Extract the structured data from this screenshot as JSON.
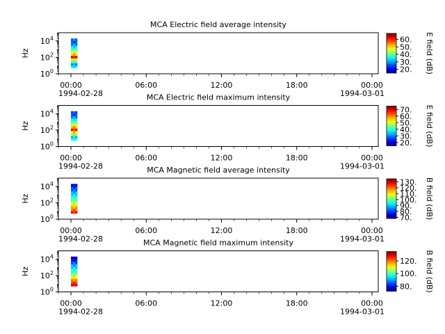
{
  "chart_data": [
    {
      "type": "heatmap",
      "title": "MCA  Electric field average intensity",
      "ylabel": "Hz",
      "colorbar_label": "E field (dB)",
      "colorbar_ticks": [
        "20.",
        "30.",
        "40.",
        "50.",
        "60."
      ],
      "colorbar_range": [
        15,
        68
      ],
      "x_ticks": [
        "00:00",
        "06:00",
        "12:00",
        "18:00",
        "00:00"
      ],
      "x_date_start": "1994-02-28",
      "x_date_end": "1994-03-01",
      "xlim": [
        "1994-02-27 23:00",
        "1994-03-01 00:30"
      ],
      "ylim": [
        1,
        100000
      ],
      "y_scale": "log",
      "y_ticks": [
        1,
        100,
        10000
      ],
      "data_time_range": [
        "1994-02-28 00:00",
        "1994-02-28 00:30"
      ],
      "data_freq_range": [
        5,
        20000
      ],
      "profile": [
        35,
        30,
        38,
        48,
        62,
        52,
        45,
        40,
        34,
        30,
        25,
        28
      ]
    },
    {
      "type": "heatmap",
      "title": "MCA  Electric field maximum intensity",
      "ylabel": "Hz",
      "colorbar_label": "E field (dB)",
      "colorbar_ticks": [
        "20.",
        "30.",
        "40.",
        "50.",
        "60.",
        "70."
      ],
      "colorbar_range": [
        15,
        75
      ],
      "x_ticks": [
        "00:00",
        "06:00",
        "12:00",
        "18:00",
        "00:00"
      ],
      "x_date_start": "1994-02-28",
      "x_date_end": "1994-03-01",
      "xlim": [
        "1994-02-27 23:00",
        "1994-03-01 00:30"
      ],
      "ylim": [
        1,
        100000
      ],
      "y_scale": "log",
      "y_ticks": [
        1,
        100,
        10000
      ],
      "data_time_range": [
        "1994-02-28 00:00",
        "1994-02-28 00:30"
      ],
      "data_freq_range": [
        5,
        20000
      ],
      "profile": [
        40,
        35,
        45,
        55,
        66,
        58,
        50,
        44,
        38,
        32,
        26,
        28
      ]
    },
    {
      "type": "heatmap",
      "title": "MCA  Magnetic field average intensity",
      "ylabel": "Hz",
      "colorbar_label": "B field (dB)",
      "colorbar_ticks": [
        "70.",
        "80.",
        "90.",
        "100.",
        "110.",
        "120.",
        "130."
      ],
      "colorbar_range": [
        68,
        135
      ],
      "x_ticks": [
        "00:00",
        "06:00",
        "12:00",
        "18:00",
        "00:00"
      ],
      "x_date_start": "1994-02-28",
      "x_date_end": "1994-03-01",
      "xlim": [
        "1994-02-27 23:00",
        "1994-03-01 00:30"
      ],
      "ylim": [
        1,
        100000
      ],
      "y_scale": "log",
      "y_ticks": [
        1,
        100,
        10000
      ],
      "data_time_range": [
        "1994-02-28 00:00",
        "1994-02-28 00:30"
      ],
      "data_freq_range": [
        5,
        20000
      ],
      "profile": [
        125,
        120,
        115,
        110,
        104,
        100,
        96,
        92,
        88,
        84,
        80,
        76
      ]
    },
    {
      "type": "heatmap",
      "title": "MCA  Magnetic field maximum intensity",
      "ylabel": "Hz",
      "colorbar_label": "B field (dB)",
      "colorbar_ticks": [
        "80.",
        "100.",
        "120."
      ],
      "colorbar_range": [
        72,
        135
      ],
      "x_ticks": [
        "00:00",
        "06:00",
        "12:00",
        "18:00",
        "00:00"
      ],
      "x_date_start": "1994-02-28",
      "x_date_end": "1994-03-01",
      "xlim": [
        "1994-02-27 23:00",
        "1994-03-01 00:30"
      ],
      "ylim": [
        1,
        100000
      ],
      "y_scale": "log",
      "y_ticks": [
        1,
        100,
        10000
      ],
      "data_time_range": [
        "1994-02-28 00:00",
        "1994-02-28 00:30"
      ],
      "data_freq_range": [
        5,
        20000
      ],
      "profile": [
        128,
        124,
        118,
        112,
        106,
        102,
        98,
        94,
        90,
        86,
        80,
        76
      ]
    }
  ]
}
